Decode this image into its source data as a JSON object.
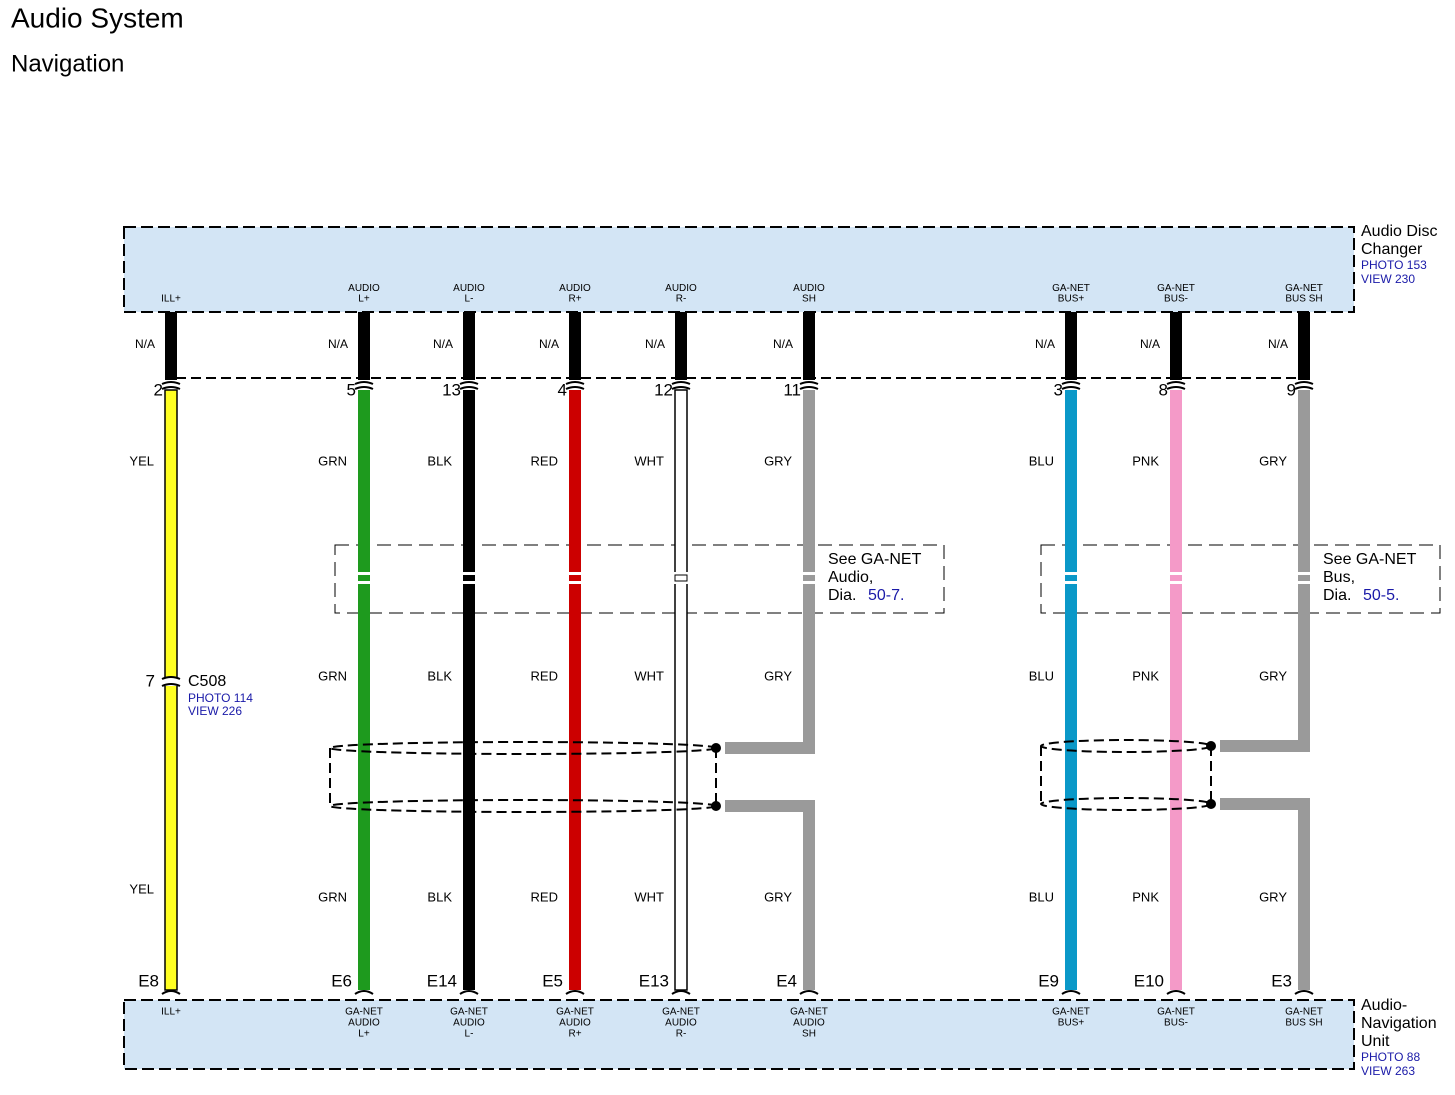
{
  "header": {
    "title": "Audio System",
    "subtitle": "Navigation"
  },
  "top_component": {
    "name_lines": [
      "Audio Disc",
      "Changer"
    ],
    "photo": "PHOTO 153",
    "view": "VIEW 230"
  },
  "bottom_component": {
    "name_lines": [
      "Audio-",
      "Navigation",
      "Unit"
    ],
    "photo": "PHOTO 88",
    "view": "VIEW 263"
  },
  "inline_connector": {
    "name": "C508",
    "photo": "PHOTO 114",
    "view": "VIEW 226"
  },
  "wires": [
    {
      "top_terminal": [
        "ILL+"
      ],
      "top_wire_color": "N/A",
      "top_pin": "2",
      "inline_pin": "7",
      "colors": [
        "YEL",
        "YEL"
      ],
      "stroke": "#ffff22",
      "bottom_pin": "E8",
      "bottom_terminal": [
        "ILL+"
      ]
    },
    {
      "top_terminal": [
        "AUDIO",
        "L+"
      ],
      "top_wire_color": "N/A",
      "top_pin": "5",
      "colors": [
        "GRN",
        "GRN",
        "GRN"
      ],
      "stroke": "#1e9a1e",
      "bottom_pin": "E6",
      "bottom_terminal": [
        "GA-NET",
        "AUDIO",
        "L+"
      ]
    },
    {
      "top_terminal": [
        "AUDIO",
        "L-"
      ],
      "top_wire_color": "N/A",
      "top_pin": "13",
      "colors": [
        "BLK",
        "BLK",
        "BLK"
      ],
      "stroke": "#000000",
      "bottom_pin": "E14",
      "bottom_terminal": [
        "GA-NET",
        "AUDIO",
        "L-"
      ]
    },
    {
      "top_terminal": [
        "AUDIO",
        "R+"
      ],
      "top_wire_color": "N/A",
      "top_pin": "4",
      "colors": [
        "RED",
        "RED",
        "RED"
      ],
      "stroke": "#cc0000",
      "bottom_pin": "E5",
      "bottom_terminal": [
        "GA-NET",
        "AUDIO",
        "R+"
      ]
    },
    {
      "top_terminal": [
        "AUDIO",
        "R-"
      ],
      "top_wire_color": "N/A",
      "top_pin": "12",
      "colors": [
        "WHT",
        "WHT",
        "WHT"
      ],
      "stroke": "#ffffff",
      "bottom_pin": "E13",
      "bottom_terminal": [
        "GA-NET",
        "AUDIO",
        "R-"
      ]
    },
    {
      "top_terminal": [
        "AUDIO",
        "SH"
      ],
      "top_wire_color": "N/A",
      "top_pin": "11",
      "colors": [
        "GRY",
        "GRY",
        "GRY"
      ],
      "stroke": "#9a9a9a",
      "bottom_pin": "E4",
      "bottom_terminal": [
        "GA-NET",
        "AUDIO",
        "SH"
      ]
    },
    {
      "top_terminal": [
        "GA-NET",
        "BUS+"
      ],
      "top_wire_color": "N/A",
      "top_pin": "3",
      "colors": [
        "BLU",
        "BLU",
        "BLU"
      ],
      "stroke": "#0a98c8",
      "bottom_pin": "E9",
      "bottom_terminal": [
        "GA-NET",
        "BUS+"
      ]
    },
    {
      "top_terminal": [
        "GA-NET",
        "BUS-"
      ],
      "top_wire_color": "N/A",
      "top_pin": "8",
      "colors": [
        "PNK",
        "PNK",
        "PNK"
      ],
      "stroke": "#f49ac8",
      "bottom_pin": "E10",
      "bottom_terminal": [
        "GA-NET",
        "BUS-"
      ]
    },
    {
      "top_terminal": [
        "GA-NET",
        "BUS SH"
      ],
      "top_wire_color": "N/A",
      "top_pin": "9",
      "colors": [
        "GRY",
        "GRY",
        "GRY"
      ],
      "stroke": "#9a9a9a",
      "bottom_pin": "E3",
      "bottom_terminal": [
        "GA-NET",
        "BUS SH"
      ]
    }
  ],
  "notes": [
    {
      "lines": [
        "See GA-NET",
        "Audio,",
        "Dia."
      ],
      "link": "50-7."
    },
    {
      "lines": [
        "See GA-NET",
        "Bus,",
        "Dia."
      ],
      "link": "50-5."
    }
  ]
}
